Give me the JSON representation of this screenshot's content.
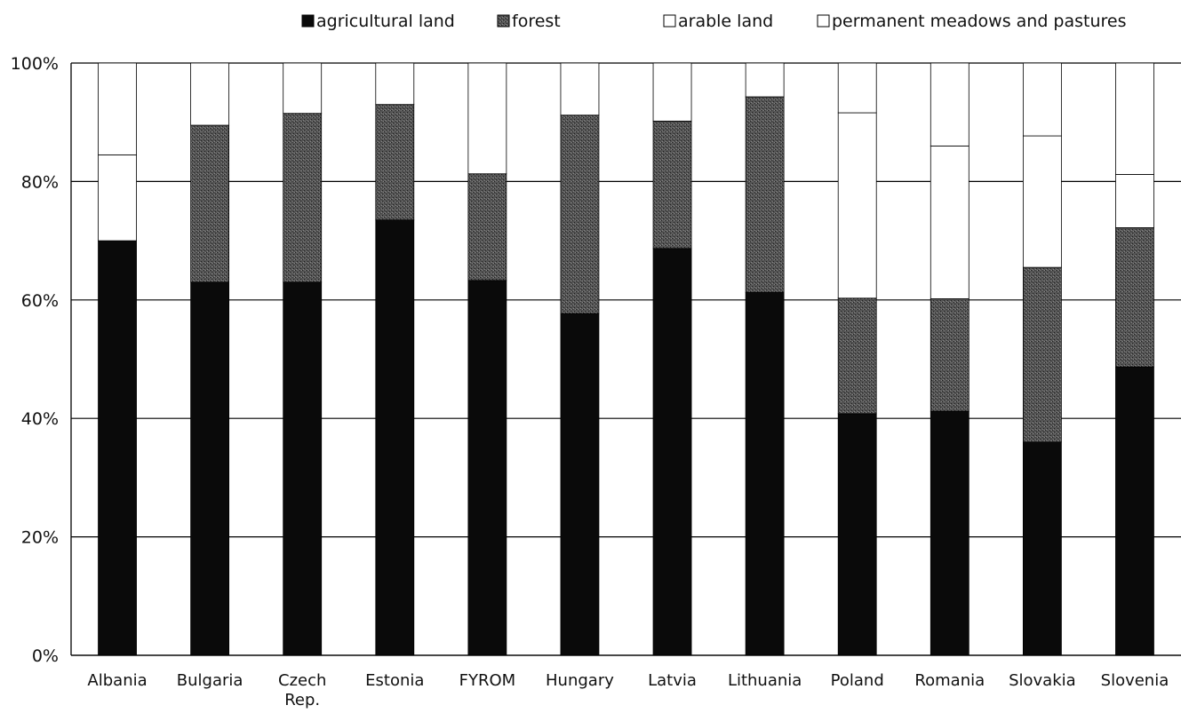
{
  "chart_data": {
    "type": "bar",
    "stacked": true,
    "categories": [
      [
        "Albania"
      ],
      [
        "Bulgaria"
      ],
      [
        "Czech",
        "Rep."
      ],
      [
        "Estonia"
      ],
      [
        "FYROM"
      ],
      [
        "Hungary"
      ],
      [
        "Latvia"
      ],
      [
        "Lithuania"
      ],
      [
        "Poland"
      ],
      [
        "Romania"
      ],
      [
        "Slovakia"
      ],
      [
        "Slovenia"
      ]
    ],
    "series": [
      {
        "name": "agricultural land",
        "color": "#0a0a0a",
        "pattern": "solid",
        "values": [
          70,
          63,
          63,
          73.5,
          63.3,
          57.7,
          68.7,
          61.3,
          40.8,
          41.2,
          36,
          48.7
        ]
      },
      {
        "name": "forest",
        "color": "#3d3d3d",
        "pattern": "dark-stipple",
        "values": [
          0,
          26.5,
          28.5,
          19.5,
          18,
          33.5,
          21.5,
          33,
          19.5,
          19,
          29.5,
          23.5
        ]
      },
      {
        "name": "arable land",
        "color": "#ffffff",
        "pattern": "none",
        "values": [
          14.5,
          0,
          0,
          0,
          0,
          0,
          0,
          0,
          31.3,
          25.8,
          22.2,
          9
        ]
      },
      {
        "name": "permanent meadows and pastures",
        "color": "#ffffff",
        "pattern": "none",
        "values": [
          15.5,
          10.5,
          8.5,
          7,
          18.7,
          8.8,
          9.8,
          5.7,
          8.4,
          14,
          12.3,
          18.8
        ]
      }
    ],
    "y_ticks": [
      "0%",
      "20%",
      "40%",
      "60%",
      "80%",
      "100%"
    ],
    "ylim": [
      0,
      100
    ],
    "grid": true,
    "legend_position": "top"
  }
}
